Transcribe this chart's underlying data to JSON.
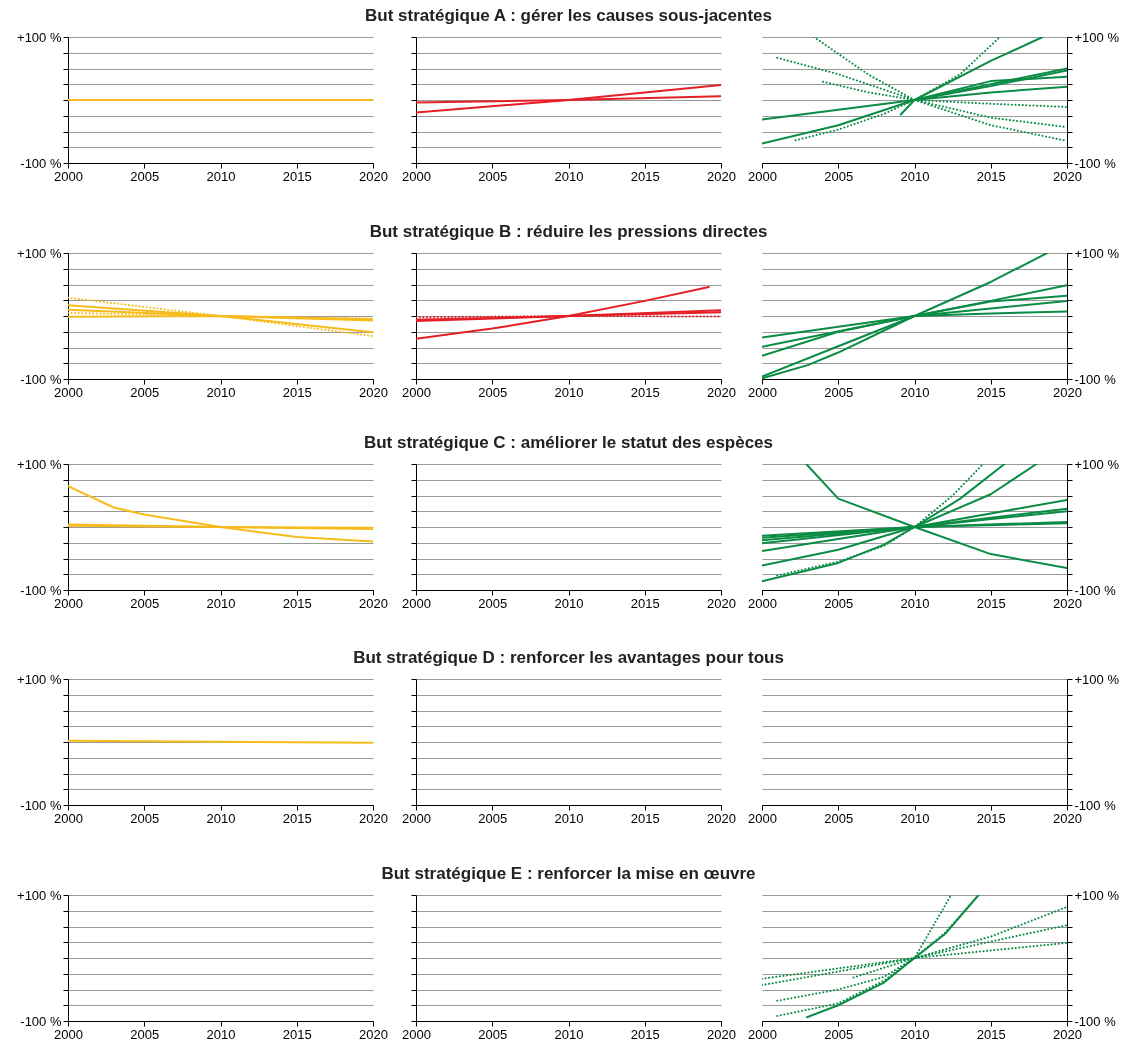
{
  "chart_data": [
    {
      "type": "line",
      "xlim": [
        2000,
        2020
      ],
      "xticks": [
        2000,
        2005,
        2010,
        2015,
        2020
      ],
      "ylim": [
        -100,
        100
      ],
      "yticks": [
        {
          "value": -100,
          "label": "-100 %"
        },
        {
          "value": -75,
          "label": null
        },
        {
          "value": -50,
          "label": null
        },
        {
          "value": -25,
          "label": null
        },
        {
          "value": 0,
          "label": null
        },
        {
          "value": 25,
          "label": null
        },
        {
          "value": 50,
          "label": null
        },
        {
          "value": 75,
          "label": null
        },
        {
          "value": 100,
          "label": "+100 %"
        }
      ],
      "grid": "y",
      "line_style": "solid",
      "series": [
        {
          "color": "#f6bb1c",
          "x": [
            2000,
            2020
          ],
          "values": [
            0,
            0
          ]
        }
      ]
    },
    {
      "type": "line",
      "title": "But stratégique A : gérer les causes sous-jacentes",
      "xlim": [
        2000,
        2020
      ],
      "xticks": [
        2000,
        2005,
        2010,
        2015,
        2020
      ],
      "ylim": [
        -100,
        100
      ],
      "yticks": [
        {
          "value": -100,
          "label": null
        },
        {
          "value": -75,
          "label": null
        },
        {
          "value": -50,
          "label": null
        },
        {
          "value": -25,
          "label": null
        },
        {
          "value": 0,
          "label": null
        },
        {
          "value": 25,
          "label": null
        },
        {
          "value": 50,
          "label": null
        },
        {
          "value": 75,
          "label": null
        },
        {
          "value": 100,
          "label": null
        }
      ],
      "grid": "y",
      "tick_labels": "x",
      "line_style": "solid",
      "series": [
        {
          "color": "#e41f26",
          "x": [
            2000,
            2010,
            2020
          ],
          "values": [
            -4,
            0,
            6
          ]
        },
        {
          "color": "#e41f26",
          "x": [
            2000,
            2010,
            2020
          ],
          "values": [
            -20,
            0,
            24
          ]
        }
      ]
    },
    {
      "type": "line",
      "xlim": [
        2000,
        2020
      ],
      "xticks": [
        2000,
        2005,
        2010,
        2015,
        2020
      ],
      "y2lim": [
        -100,
        100
      ],
      "y2ticks": [
        {
          "value": -100,
          "label": "-100 %"
        },
        {
          "value": -75,
          "label": null
        },
        {
          "value": -50,
          "label": null
        },
        {
          "value": -25,
          "label": null
        },
        {
          "value": 0,
          "label": null
        },
        {
          "value": 25,
          "label": null
        },
        {
          "value": 50,
          "label": null
        },
        {
          "value": 75,
          "label": null
        },
        {
          "value": 100,
          "label": "+100 %"
        }
      ],
      "grid": "y",
      "line_style": "solid",
      "series": [
        {
          "color": "#0b8c45",
          "axis": "y2",
          "x": [
            2000,
            2010,
            2015,
            2020
          ],
          "values": [
            -31,
            0,
            12,
            21
          ]
        },
        {
          "color": "#0b8c45",
          "axis": "y2",
          "x": [
            2000,
            2005,
            2010,
            2015,
            2018.4
          ],
          "values": [
            -69,
            -40,
            0,
            62,
            100
          ]
        },
        {
          "color": "#0b8c45",
          "axis": "y2",
          "x": [
            2009.1,
            2010,
            2015,
            2020
          ],
          "values": [
            -23,
            0,
            30,
            37
          ]
        },
        {
          "color": "#0b8c45",
          "axis": "y2",
          "x": [
            2010,
            2015,
            2020
          ],
          "values": [
            0,
            25,
            50
          ]
        },
        {
          "color": "#0b8c45",
          "axis": "y2",
          "x": [
            2010,
            2015,
            2020
          ],
          "values": [
            0,
            22,
            47
          ]
        },
        {
          "color": "#0b8c45",
          "axis": "y2",
          "line_style": "dotted",
          "x": [
            2003.4,
            2007,
            2010,
            2015,
            2020
          ],
          "values": [
            100,
            40,
            0,
            -40,
            -65
          ]
        },
        {
          "color": "#0b8c45",
          "axis": "y2",
          "line_style": "dotted",
          "x": [
            2001,
            2005,
            2010,
            2015,
            2020
          ],
          "values": [
            67,
            41,
            0,
            -28,
            -43
          ]
        },
        {
          "color": "#0b8c45",
          "axis": "y2",
          "line_style": "dotted",
          "x": [
            2004,
            2007,
            2010,
            2015,
            2020
          ],
          "values": [
            29,
            12,
            0,
            -6,
            -11
          ]
        },
        {
          "color": "#0b8c45",
          "axis": "y2",
          "line_style": "dotted",
          "x": [
            2002.2,
            2005,
            2008,
            2010,
            2013,
            2015.6
          ],
          "values": [
            -64,
            -47,
            -22,
            0,
            41,
            100
          ]
        }
      ]
    },
    {
      "type": "line",
      "xlim": [
        2000,
        2020
      ],
      "xticks": [
        2000,
        2005,
        2010,
        2015,
        2020
      ],
      "ylim": [
        -100,
        100
      ],
      "yticks": [
        {
          "value": -100,
          "label": "-100 %"
        },
        {
          "value": -75,
          "label": null
        },
        {
          "value": -50,
          "label": null
        },
        {
          "value": -25,
          "label": null
        },
        {
          "value": 0,
          "label": null
        },
        {
          "value": 25,
          "label": null
        },
        {
          "value": 50,
          "label": null
        },
        {
          "value": 75,
          "label": null
        },
        {
          "value": 100,
          "label": "+100 %"
        }
      ],
      "grid": "y",
      "line_style": "solid",
      "series": [
        {
          "color": "#f6bb1c",
          "x": [
            2000,
            2010,
            2020
          ],
          "values": [
            17,
            0,
            -26
          ]
        },
        {
          "color": "#f6bb1c",
          "line_style": "dotted",
          "x": [
            2000,
            2010,
            2020
          ],
          "values": [
            29,
            0,
            -32
          ]
        },
        {
          "color": "#f6bb1c",
          "x": [
            2000,
            2010,
            2020
          ],
          "values": [
            10,
            0,
            -7
          ]
        },
        {
          "color": "#f6bb1c",
          "line_style": "dotted",
          "x": [
            2000,
            2010,
            2020
          ],
          "values": [
            5,
            0,
            -4
          ]
        },
        {
          "color": "#f6bb1c",
          "x": [
            2000,
            2010,
            2020
          ],
          "values": [
            -1,
            0,
            -5
          ]
        }
      ]
    },
    {
      "type": "line",
      "title": "But stratégique B : réduire les pressions directes",
      "xlim": [
        2000,
        2020
      ],
      "xticks": [
        2000,
        2005,
        2010,
        2015,
        2020
      ],
      "ylim": [
        -100,
        100
      ],
      "yticks": [
        {
          "value": -100,
          "label": null
        },
        {
          "value": -75,
          "label": null
        },
        {
          "value": -50,
          "label": null
        },
        {
          "value": -25,
          "label": null
        },
        {
          "value": 0,
          "label": null
        },
        {
          "value": 25,
          "label": null
        },
        {
          "value": 50,
          "label": null
        },
        {
          "value": 75,
          "label": null
        },
        {
          "value": 100,
          "label": null
        }
      ],
      "grid": "y",
      "tick_labels": "x",
      "line_style": "solid",
      "series": [
        {
          "color": "#e41f26",
          "x": [
            2000,
            2005,
            2010,
            2015,
            2019.2
          ],
          "values": [
            -36,
            -20,
            0,
            24,
            46
          ]
        },
        {
          "color": "#e41f26",
          "x": [
            2000,
            2010,
            2020
          ],
          "values": [
            -8,
            0,
            6
          ]
        },
        {
          "color": "#e41f26",
          "x": [
            2000,
            2010,
            2020
          ],
          "values": [
            -6,
            0,
            9
          ]
        },
        {
          "color": "#e41f26",
          "line_style": "dotted",
          "x": [
            2000,
            2010,
            2020
          ],
          "values": [
            -2,
            0,
            -1
          ]
        }
      ]
    },
    {
      "type": "line",
      "xlim": [
        2000,
        2020
      ],
      "xticks": [
        2000,
        2005,
        2010,
        2015,
        2020
      ],
      "y2lim": [
        -100,
        100
      ],
      "y2ticks": [
        {
          "value": -100,
          "label": "-100 %"
        },
        {
          "value": -75,
          "label": null
        },
        {
          "value": -50,
          "label": null
        },
        {
          "value": -25,
          "label": null
        },
        {
          "value": 0,
          "label": null
        },
        {
          "value": 25,
          "label": null
        },
        {
          "value": 50,
          "label": null
        },
        {
          "value": 75,
          "label": null
        },
        {
          "value": 100,
          "label": "+100 %"
        }
      ],
      "grid": "y",
      "line_style": "solid",
      "series": [
        {
          "color": "#0b8c45",
          "axis": "y2",
          "x": [
            2000,
            2010,
            2015,
            2020
          ],
          "values": [
            -34,
            0,
            4,
            7
          ]
        },
        {
          "color": "#0b8c45",
          "axis": "y2",
          "x": [
            2000,
            2010,
            2015,
            2020
          ],
          "values": [
            -49,
            0,
            12,
            24
          ]
        },
        {
          "color": "#0b8c45",
          "axis": "y2",
          "x": [
            2000,
            2005,
            2010,
            2015,
            2020
          ],
          "values": [
            -63,
            -25,
            0,
            23,
            32
          ]
        },
        {
          "color": "#0b8c45",
          "axis": "y2",
          "x": [
            2000,
            2005,
            2010,
            2015,
            2018.7
          ],
          "values": [
            -96,
            -48,
            0,
            54,
            100
          ]
        },
        {
          "color": "#0b8c45",
          "axis": "y2",
          "x": [
            2000,
            2003,
            2005,
            2010,
            2015,
            2020
          ],
          "values": [
            -99,
            -78,
            -58,
            0,
            24,
            49
          ]
        }
      ]
    },
    {
      "type": "line",
      "xlim": [
        2000,
        2020
      ],
      "xticks": [
        2000,
        2005,
        2010,
        2015,
        2020
      ],
      "ylim": [
        -100,
        100
      ],
      "yticks": [
        {
          "value": -100,
          "label": "-100 %"
        },
        {
          "value": -75,
          "label": null
        },
        {
          "value": -50,
          "label": null
        },
        {
          "value": -25,
          "label": null
        },
        {
          "value": 0,
          "label": null
        },
        {
          "value": 25,
          "label": null
        },
        {
          "value": 50,
          "label": null
        },
        {
          "value": 75,
          "label": null
        },
        {
          "value": 100,
          "label": "+100 %"
        }
      ],
      "grid": "y",
      "line_style": "solid",
      "series": [
        {
          "color": "#f6bb1c",
          "x": [
            2000,
            2003,
            2005,
            2010,
            2015,
            2020
          ],
          "values": [
            65,
            31,
            20,
            0,
            -16,
            -23
          ]
        },
        {
          "color": "#f6bb1c",
          "x": [
            2000,
            2010,
            2020
          ],
          "values": [
            4,
            0,
            -3
          ]
        },
        {
          "color": "#f6bb1c",
          "x": [
            2000,
            2010,
            2020
          ],
          "values": [
            2,
            0,
            -1
          ]
        }
      ]
    },
    {
      "type": "line",
      "title": "But stratégique C : améliorer le statut des espèces",
      "xlim": [
        2000,
        2020
      ],
      "xticks": [
        2000,
        2005,
        2010,
        2015,
        2020
      ],
      "ylim": [
        -100,
        100
      ],
      "yticks": [
        {
          "value": -100,
          "label": null
        },
        {
          "value": -75,
          "label": null
        },
        {
          "value": -50,
          "label": null
        },
        {
          "value": -25,
          "label": null
        },
        {
          "value": 0,
          "label": null
        },
        {
          "value": 25,
          "label": null
        },
        {
          "value": 50,
          "label": null
        },
        {
          "value": 75,
          "label": null
        },
        {
          "value": 100,
          "label": null
        }
      ],
      "grid": "y",
      "tick_labels": "x"
    },
    {
      "type": "line",
      "xlim": [
        2000,
        2020
      ],
      "xticks": [
        2000,
        2005,
        2010,
        2015,
        2020
      ],
      "y2lim": [
        -100,
        100
      ],
      "y2ticks": [
        {
          "value": -100,
          "label": "-100 %"
        },
        {
          "value": -75,
          "label": null
        },
        {
          "value": -50,
          "label": null
        },
        {
          "value": -25,
          "label": null
        },
        {
          "value": 0,
          "label": null
        },
        {
          "value": 25,
          "label": null
        },
        {
          "value": 50,
          "label": null
        },
        {
          "value": 75,
          "label": null
        },
        {
          "value": 100,
          "label": "+100 %"
        }
      ],
      "grid": "y",
      "line_style": "solid",
      "series": [
        {
          "color": "#0b8c45",
          "axis": "y2",
          "x": [
            2002.9,
            2005,
            2010,
            2015,
            2020
          ],
          "values": [
            100,
            45,
            0,
            -43,
            -65
          ]
        },
        {
          "color": "#0b8c45",
          "axis": "y2",
          "x": [
            2000,
            2005,
            2008,
            2010,
            2013,
            2015.9
          ],
          "values": [
            -86,
            -57,
            -28,
            0,
            45,
            100
          ]
        },
        {
          "color": "#0b8c45",
          "axis": "y2",
          "line_style": "dotted",
          "x": [
            2001,
            2005,
            2008,
            2010,
            2012.5,
            2014.5
          ],
          "values": [
            -77,
            -55,
            -30,
            0,
            50,
            100
          ]
        },
        {
          "color": "#0b8c45",
          "axis": "y2",
          "x": [
            2000,
            2005,
            2010,
            2015,
            2018
          ],
          "values": [
            -61,
            -36,
            0,
            52,
            100
          ]
        },
        {
          "color": "#0b8c45",
          "axis": "y2",
          "x": [
            2000,
            2010,
            2020
          ],
          "values": [
            -38,
            0,
            43
          ]
        },
        {
          "color": "#0b8c45",
          "axis": "y2",
          "x": [
            2000,
            2010,
            2020
          ],
          "values": [
            -26,
            0,
            29
          ]
        },
        {
          "color": "#0b8c45",
          "axis": "y2",
          "x": [
            2000,
            2010,
            2020
          ],
          "values": [
            -21,
            0,
            25
          ]
        },
        {
          "color": "#0b8c45",
          "axis": "y2",
          "x": [
            2000,
            2010,
            2020
          ],
          "values": [
            -14,
            0,
            8
          ]
        },
        {
          "color": "#0b8c45",
          "axis": "y2",
          "x": [
            2000,
            2010,
            2020
          ],
          "values": [
            -17,
            0,
            6
          ]
        }
      ]
    },
    {
      "type": "line",
      "xlim": [
        2000,
        2020
      ],
      "xticks": [
        2000,
        2005,
        2010,
        2015,
        2020
      ],
      "ylim": [
        -100,
        100
      ],
      "yticks": [
        {
          "value": -100,
          "label": "-100 %"
        },
        {
          "value": -75,
          "label": null
        },
        {
          "value": -50,
          "label": null
        },
        {
          "value": -25,
          "label": null
        },
        {
          "value": 0,
          "label": null
        },
        {
          "value": 25,
          "label": null
        },
        {
          "value": 50,
          "label": null
        },
        {
          "value": 75,
          "label": null
        },
        {
          "value": 100,
          "label": "+100 %"
        }
      ],
      "grid": "y",
      "line_style": "solid",
      "series": [
        {
          "color": "#f6bb1c",
          "x": [
            2000,
            2020
          ],
          "values": [
            2,
            -1
          ]
        }
      ]
    },
    {
      "type": "line",
      "title": "But stratégique D : renforcer les avantages pour tous",
      "xlim": [
        2000,
        2020
      ],
      "xticks": [
        2000,
        2005,
        2010,
        2015,
        2020
      ],
      "ylim": [
        -100,
        100
      ],
      "yticks": [
        {
          "value": -100,
          "label": null
        },
        {
          "value": -75,
          "label": null
        },
        {
          "value": -50,
          "label": null
        },
        {
          "value": -25,
          "label": null
        },
        {
          "value": 0,
          "label": null
        },
        {
          "value": 25,
          "label": null
        },
        {
          "value": 50,
          "label": null
        },
        {
          "value": 75,
          "label": null
        },
        {
          "value": 100,
          "label": null
        }
      ],
      "grid": "y",
      "tick_labels": "x"
    },
    {
      "type": "line",
      "xlim": [
        2000,
        2020
      ],
      "xticks": [
        2000,
        2005,
        2010,
        2015,
        2020
      ],
      "y2lim": [
        -100,
        100
      ],
      "y2ticks": [
        {
          "value": -100,
          "label": "-100 %"
        },
        {
          "value": -75,
          "label": null
        },
        {
          "value": -50,
          "label": null
        },
        {
          "value": -25,
          "label": null
        },
        {
          "value": 0,
          "label": null
        },
        {
          "value": 25,
          "label": null
        },
        {
          "value": 50,
          "label": null
        },
        {
          "value": 75,
          "label": null
        },
        {
          "value": 100,
          "label": "+100 %"
        }
      ],
      "grid": "y"
    },
    {
      "type": "line",
      "xlim": [
        2000,
        2020
      ],
      "xticks": [
        2000,
        2005,
        2010,
        2015,
        2020
      ],
      "ylim": [
        -100,
        100
      ],
      "yticks": [
        {
          "value": -100,
          "label": "-100 %"
        },
        {
          "value": -75,
          "label": null
        },
        {
          "value": -50,
          "label": null
        },
        {
          "value": -25,
          "label": null
        },
        {
          "value": 0,
          "label": null
        },
        {
          "value": 25,
          "label": null
        },
        {
          "value": 50,
          "label": null
        },
        {
          "value": 75,
          "label": null
        },
        {
          "value": 100,
          "label": "+100 %"
        }
      ],
      "grid": "y"
    },
    {
      "type": "line",
      "title": "But stratégique E : renforcer la mise en œuvre",
      "xlim": [
        2000,
        2020
      ],
      "xticks": [
        2000,
        2005,
        2010,
        2015,
        2020
      ],
      "ylim": [
        -100,
        100
      ],
      "yticks": [
        {
          "value": -100,
          "label": null
        },
        {
          "value": -75,
          "label": null
        },
        {
          "value": -50,
          "label": null
        },
        {
          "value": -25,
          "label": null
        },
        {
          "value": 0,
          "label": null
        },
        {
          "value": 25,
          "label": null
        },
        {
          "value": 50,
          "label": null
        },
        {
          "value": 75,
          "label": null
        },
        {
          "value": 100,
          "label": null
        }
      ],
      "grid": "y",
      "tick_labels": "x"
    },
    {
      "type": "line",
      "xlim": [
        2000,
        2020
      ],
      "xticks": [
        2000,
        2005,
        2010,
        2015,
        2020
      ],
      "y2lim": [
        -100,
        100
      ],
      "y2ticks": [
        {
          "value": -100,
          "label": "-100 %"
        },
        {
          "value": -75,
          "label": null
        },
        {
          "value": -50,
          "label": null
        },
        {
          "value": -25,
          "label": null
        },
        {
          "value": 0,
          "label": null
        },
        {
          "value": 25,
          "label": null
        },
        {
          "value": 50,
          "label": null
        },
        {
          "value": 75,
          "label": null
        },
        {
          "value": 100,
          "label": "+100 %"
        }
      ],
      "grid": "y",
      "line_style": "dotted",
      "series": [
        {
          "color": "#0b8c45",
          "axis": "y2",
          "line_style": "solid",
          "x": [
            2002.95,
            2005,
            2008,
            2010,
            2012,
            2014.2
          ],
          "values": [
            -94,
            -75,
            -39,
            0,
            38,
            100
          ]
        },
        {
          "color": "#0b8c45",
          "axis": "y2",
          "x": [
            2001,
            2005,
            2008,
            2010,
            2012.4
          ],
          "values": [
            -68,
            -50,
            -30,
            0,
            100
          ]
        },
        {
          "color": "#0b8c45",
          "axis": "y2",
          "x": [
            2001,
            2005,
            2008,
            2010,
            2012,
            2014.2
          ],
          "values": [
            -92,
            -72,
            -36,
            0,
            40,
            100
          ]
        },
        {
          "color": "#0b8c45",
          "axis": "y2",
          "x": [
            2000,
            2010,
            2020
          ],
          "values": [
            -33,
            0,
            24
          ]
        },
        {
          "color": "#0b8c45",
          "axis": "y2",
          "x": [
            2000,
            2010,
            2020
          ],
          "values": [
            -43,
            0,
            52
          ]
        },
        {
          "color": "#0b8c45",
          "axis": "y2",
          "x": [
            2006,
            2010,
            2015,
            2020
          ],
          "values": [
            -31,
            0,
            34,
            81
          ]
        }
      ]
    }
  ]
}
